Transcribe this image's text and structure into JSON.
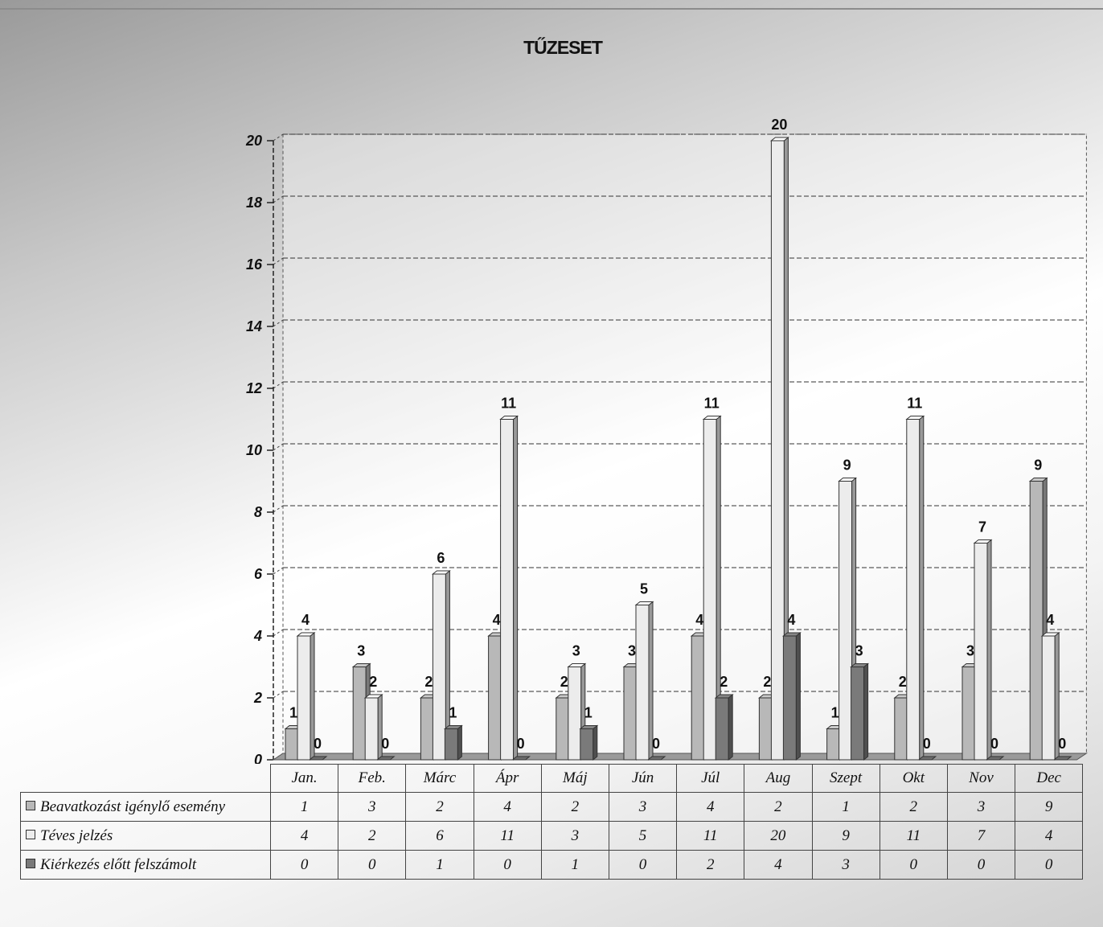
{
  "chart_data": {
    "type": "bar",
    "title": "TŰZESET",
    "xlabel": "",
    "ylabel": "",
    "ylim": [
      0,
      20
    ],
    "yticks": [
      0,
      2,
      4,
      6,
      8,
      10,
      12,
      14,
      16,
      18,
      20
    ],
    "grid": true,
    "legend": "table-left",
    "categories": [
      "Jan.",
      "Feb.",
      "Márc",
      "Ápr",
      "Máj",
      "Jún",
      "Júl",
      "Aug",
      "Szept",
      "Okt",
      "Nov",
      "Dec"
    ],
    "series": [
      {
        "name": "Beavatkozást igénylő esemény",
        "color": "#b8b8b8",
        "values": [
          1,
          3,
          2,
          4,
          2,
          3,
          4,
          2,
          1,
          2,
          3,
          9
        ]
      },
      {
        "name": "Téves jelzés",
        "color": "#ececec",
        "values": [
          4,
          2,
          6,
          11,
          3,
          5,
          11,
          20,
          9,
          11,
          7,
          4
        ]
      },
      {
        "name": "Kiérkezés előtt felszámolt",
        "color": "#7a7a7a",
        "values": [
          0,
          0,
          1,
          0,
          1,
          0,
          2,
          4,
          3,
          0,
          0,
          0
        ]
      }
    ]
  }
}
